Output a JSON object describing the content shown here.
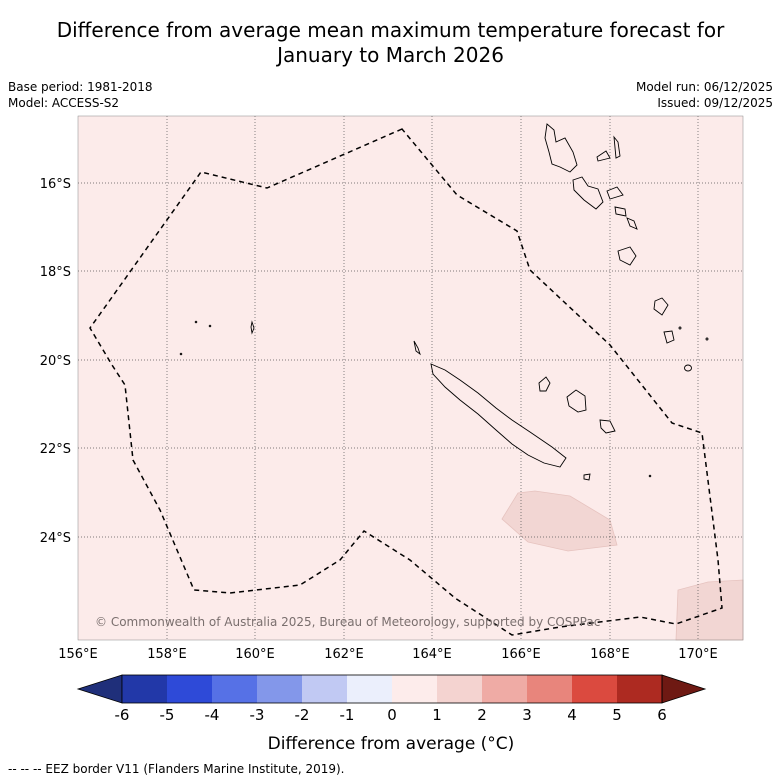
{
  "title_line1": "Difference from average mean maximum temperature forecast for",
  "title_line2": "January to March 2026",
  "base_period": "Base period: 1981-2018",
  "model": "Model: ACCESS-S2",
  "model_run": "Model run: 06/12/2025",
  "issued": "Issued: 09/12/2025",
  "copyright": "© Commonwealth of Australia 2025, Bureau of Meteorology, supported by COSPPac",
  "lon_ticks": [
    "156°E",
    "158°E",
    "160°E",
    "162°E",
    "164°E",
    "166°E",
    "168°E",
    "170°E"
  ],
  "lat_ticks": [
    "16°S",
    "18°S",
    "20°S",
    "22°S",
    "24°S"
  ],
  "colorbar": {
    "ticks": [
      "-6",
      "-5",
      "-4",
      "-3",
      "-2",
      "-1",
      "0",
      "1",
      "2",
      "3",
      "4",
      "5",
      "6"
    ],
    "colors": [
      "#1f2f7a",
      "#2238a8",
      "#2e4ad8",
      "#5671e6",
      "#8397ea",
      "#c1c9f3",
      "#ebeffc",
      "#fdeceb",
      "#f4d3d0",
      "#efaba5",
      "#e8857c",
      "#db4a3f",
      "#ad2a21",
      "#6e1913"
    ],
    "label": "Difference from average (°C)"
  },
  "footer": "-- -- -- EEZ border V11 (Flanders Marine Institute, 2019).",
  "map_colors": {
    "background": "#fcebea",
    "warm_patch": "#f2d6d3"
  }
}
